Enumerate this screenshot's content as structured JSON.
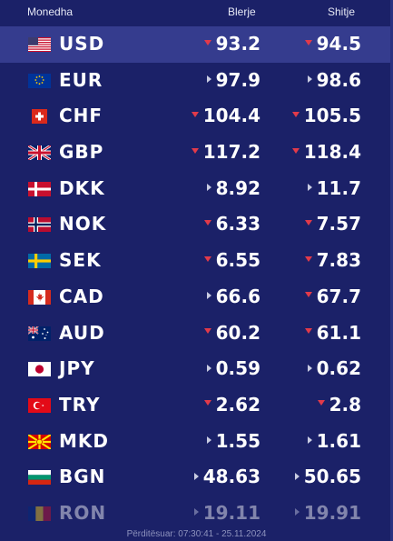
{
  "header": {
    "currency": "Monedha",
    "buy": "Blerje",
    "sell": "Shitje"
  },
  "rows": [
    {
      "code": "USD",
      "buy": "93.2",
      "sell": "94.5",
      "buy_trend": "down",
      "sell_trend": "down",
      "flag_icon": "us-flag-icon",
      "selected": true
    },
    {
      "code": "EUR",
      "buy": "97.9",
      "sell": "98.6",
      "buy_trend": "neutral",
      "sell_trend": "neutral",
      "flag_icon": "eu-flag-icon"
    },
    {
      "code": "CHF",
      "buy": "104.4",
      "sell": "105.5",
      "buy_trend": "down",
      "sell_trend": "down",
      "flag_icon": "ch-flag-icon"
    },
    {
      "code": "GBP",
      "buy": "117.2",
      "sell": "118.4",
      "buy_trend": "down",
      "sell_trend": "down",
      "flag_icon": "gb-flag-icon"
    },
    {
      "code": "DKK",
      "buy": "8.92",
      "sell": "11.7",
      "buy_trend": "neutral",
      "sell_trend": "neutral",
      "flag_icon": "dk-flag-icon"
    },
    {
      "code": "NOK",
      "buy": "6.33",
      "sell": "7.57",
      "buy_trend": "down",
      "sell_trend": "down",
      "flag_icon": "no-flag-icon"
    },
    {
      "code": "SEK",
      "buy": "6.55",
      "sell": "7.83",
      "buy_trend": "down",
      "sell_trend": "down",
      "flag_icon": "se-flag-icon"
    },
    {
      "code": "CAD",
      "buy": "66.6",
      "sell": "67.7",
      "buy_trend": "neutral",
      "sell_trend": "down",
      "flag_icon": "ca-flag-icon"
    },
    {
      "code": "AUD",
      "buy": "60.2",
      "sell": "61.1",
      "buy_trend": "down",
      "sell_trend": "down",
      "flag_icon": "au-flag-icon"
    },
    {
      "code": "JPY",
      "buy": "0.59",
      "sell": "0.62",
      "buy_trend": "neutral",
      "sell_trend": "neutral",
      "flag_icon": "jp-flag-icon"
    },
    {
      "code": "TRY",
      "buy": "2.62",
      "sell": "2.8",
      "buy_trend": "down",
      "sell_trend": "down",
      "flag_icon": "tr-flag-icon"
    },
    {
      "code": "MKD",
      "buy": "1.55",
      "sell": "1.61",
      "buy_trend": "neutral",
      "sell_trend": "neutral",
      "flag_icon": "mk-flag-icon"
    },
    {
      "code": "BGN",
      "buy": "48.63",
      "sell": "50.65",
      "buy_trend": "neutral",
      "sell_trend": "neutral",
      "flag_icon": "bg-flag-icon"
    },
    {
      "code": "RON",
      "buy": "19.11",
      "sell": "19.91",
      "buy_trend": "neutral",
      "sell_trend": "neutral",
      "flag_icon": "ro-flag-icon",
      "faded": true
    }
  ],
  "footer": {
    "updated": "Përditësuar: 07:30:41 - 25.11.2024"
  },
  "colors": {
    "background": "#1b2168",
    "selected_row": "#353c8e",
    "down_arrow": "#e23a4a",
    "neutral_arrow": "#c9cce2"
  }
}
